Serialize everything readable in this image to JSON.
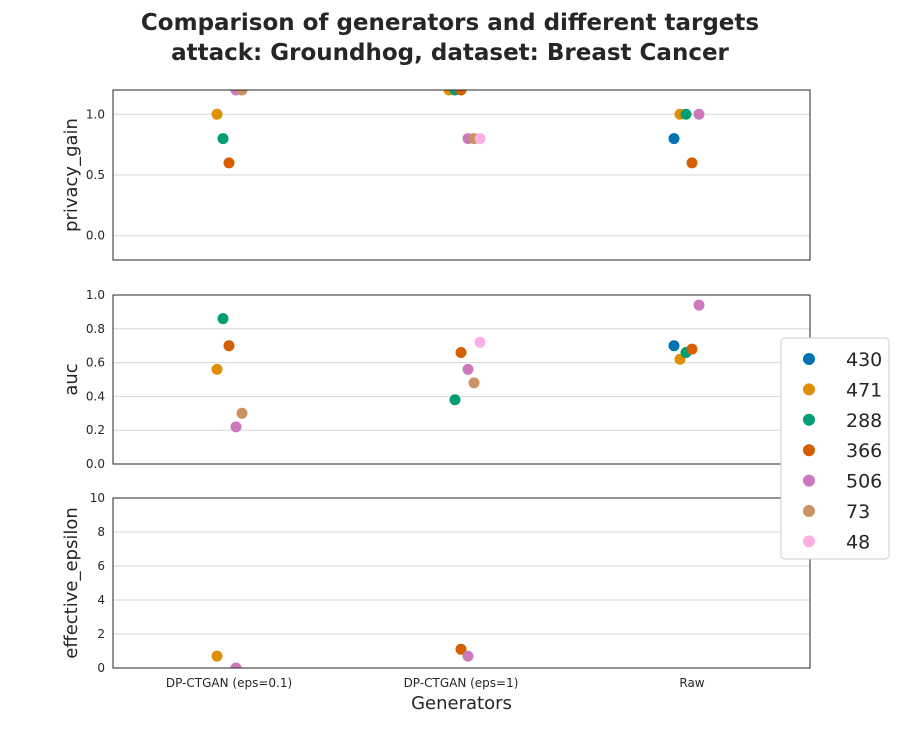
{
  "title_line1": "Comparison of generators and different targets",
  "title_line2": "attack: Groundhog, dataset: Breast Cancer",
  "chart_data": [
    {
      "type": "scatter",
      "ylabel": "privacy_gain",
      "ylim": [
        -0.2,
        1.2
      ],
      "yticks": [
        "0.0",
        "0.5",
        "1.0"
      ],
      "grid": true,
      "categories": [
        "DP-CTGAN (eps=0.1)",
        "DP-CTGAN (eps=1)",
        "Raw"
      ],
      "series": [
        {
          "name": "430",
          "values": [
            null,
            null,
            0.8
          ]
        },
        {
          "name": "471",
          "values": [
            1.0,
            1.2,
            1.0
          ]
        },
        {
          "name": "288",
          "values": [
            0.8,
            1.2,
            1.0
          ]
        },
        {
          "name": "366",
          "values": [
            0.6,
            1.2,
            0.6
          ]
        },
        {
          "name": "506",
          "values": [
            1.2,
            0.8,
            1.0
          ]
        },
        {
          "name": "73",
          "values": [
            1.2,
            0.8,
            null
          ]
        },
        {
          "name": "48",
          "values": [
            null,
            0.8,
            null
          ]
        }
      ]
    },
    {
      "type": "scatter",
      "ylabel": "auc",
      "ylim": [
        0.0,
        1.0
      ],
      "yticks": [
        "0.0",
        "0.2",
        "0.4",
        "0.6",
        "0.8",
        "1.0"
      ],
      "grid": true,
      "categories": [
        "DP-CTGAN (eps=0.1)",
        "DP-CTGAN (eps=1)",
        "Raw"
      ],
      "series": [
        {
          "name": "430",
          "values": [
            null,
            null,
            0.7
          ]
        },
        {
          "name": "471",
          "values": [
            0.56,
            null,
            0.62
          ]
        },
        {
          "name": "288",
          "values": [
            0.86,
            0.38,
            0.66
          ]
        },
        {
          "name": "366",
          "values": [
            0.7,
            0.66,
            0.68
          ]
        },
        {
          "name": "506",
          "values": [
            0.22,
            0.56,
            0.94
          ]
        },
        {
          "name": "73",
          "values": [
            0.3,
            0.48,
            null
          ]
        },
        {
          "name": "48",
          "values": [
            null,
            0.72,
            null
          ]
        }
      ]
    },
    {
      "type": "scatter",
      "ylabel": "effective_epsilon",
      "xlabel": "Generators",
      "ylim": [
        0,
        10
      ],
      "yticks": [
        "0",
        "2",
        "4",
        "6",
        "8",
        "10"
      ],
      "grid": true,
      "categories": [
        "DP-CTGAN (eps=0.1)",
        "DP-CTGAN (eps=1)",
        "Raw"
      ],
      "series": [
        {
          "name": "430",
          "values": [
            null,
            null,
            null
          ]
        },
        {
          "name": "471",
          "values": [
            0.7,
            null,
            null
          ]
        },
        {
          "name": "288",
          "values": [
            null,
            null,
            null
          ]
        },
        {
          "name": "366",
          "values": [
            null,
            1.1,
            null
          ]
        },
        {
          "name": "506",
          "values": [
            0.0,
            0.7,
            null
          ]
        },
        {
          "name": "73",
          "values": [
            null,
            null,
            null
          ]
        },
        {
          "name": "48",
          "values": [
            null,
            null,
            null
          ]
        }
      ]
    }
  ],
  "legend": {
    "placement": "right",
    "items": [
      {
        "label": "430",
        "color": "#0173b2"
      },
      {
        "label": "471",
        "color": "#de8f05"
      },
      {
        "label": "288",
        "color": "#029e73"
      },
      {
        "label": "366",
        "color": "#d55e00"
      },
      {
        "label": "506",
        "color": "#cc78bc"
      },
      {
        "label": "73",
        "color": "#ca9161"
      },
      {
        "label": "48",
        "color": "#fbafe4"
      }
    ]
  }
}
